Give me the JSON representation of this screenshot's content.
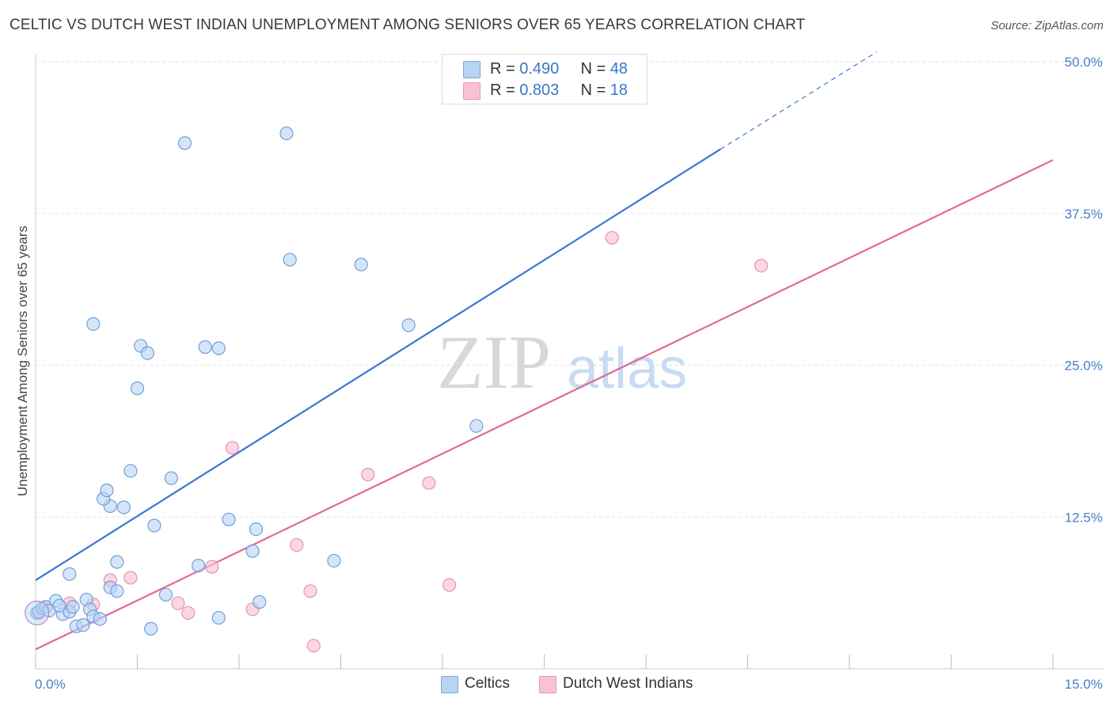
{
  "title": "CELTIC VS DUTCH WEST INDIAN UNEMPLOYMENT AMONG SENIORS OVER 65 YEARS CORRELATION CHART",
  "source": "Source: ZipAtlas.com",
  "watermark": {
    "zip": "ZIP",
    "atlas": "atlas"
  },
  "legend": {
    "rows": [
      {
        "r_label": "R = ",
        "r_value": "0.490",
        "n_label": "N = ",
        "n_value": "48"
      },
      {
        "r_label": "R = ",
        "r_value": "0.803",
        "n_label": "N = ",
        "n_value": "18"
      }
    ]
  },
  "chart_data": {
    "type": "scatter",
    "title": "CELTIC VS DUTCH WEST INDIAN UNEMPLOYMENT AMONG SENIORS OVER 65 YEARS CORRELATION CHART",
    "xlabel": "",
    "ylabel": "Unemployment Among Seniors over 65 years",
    "xlim": [
      0,
      15
    ],
    "ylim": [
      0,
      50
    ],
    "x_tick_labels": [
      "0.0%",
      "15.0%"
    ],
    "y_ticks": [
      12.5,
      25.0,
      37.5,
      50.0
    ],
    "y_tick_labels": [
      "12.5%",
      "25.0%",
      "37.5%",
      "50.0%"
    ],
    "colors": {
      "celtics": "#3a78d0",
      "celtics_fill": "#b9d3f3",
      "dutch": "#e06a96",
      "dutch_fill": "#f7c2d4",
      "grid": "#e2e2e2",
      "tick_text": "#4a7fc8"
    },
    "series": [
      {
        "name": "Celtics",
        "r": 0.49,
        "n": 48,
        "trend": {
          "x0": 0.0,
          "y0": 7.3,
          "x1": 10.1,
          "y1": 42.8,
          "dash_to_x": 12.4,
          "dash_to_y": 50.8
        },
        "points": [
          [
            0.02,
            4.6
          ],
          [
            0.05,
            4.7
          ],
          [
            0.1,
            5.0
          ],
          [
            0.15,
            5.1
          ],
          [
            0.2,
            4.8
          ],
          [
            0.3,
            5.6
          ],
          [
            0.4,
            4.5
          ],
          [
            0.5,
            4.7
          ],
          [
            0.6,
            3.5
          ],
          [
            0.7,
            3.6
          ],
          [
            0.75,
            5.7
          ],
          [
            0.8,
            4.9
          ],
          [
            0.85,
            4.3
          ],
          [
            0.95,
            4.1
          ],
          [
            0.5,
            7.8
          ],
          [
            1.1,
            6.7
          ],
          [
            1.2,
            6.4
          ],
          [
            1.2,
            8.8
          ],
          [
            1.3,
            13.3
          ],
          [
            1.4,
            16.3
          ],
          [
            1.5,
            23.1
          ],
          [
            1.55,
            26.6
          ],
          [
            1.65,
            26.0
          ],
          [
            1.7,
            3.3
          ],
          [
            1.75,
            11.8
          ],
          [
            2.0,
            15.7
          ],
          [
            1.92,
            6.1
          ],
          [
            2.2,
            43.3
          ],
          [
            2.4,
            8.5
          ],
          [
            2.5,
            26.5
          ],
          [
            2.7,
            26.4
          ],
          [
            2.7,
            4.2
          ],
          [
            2.85,
            12.3
          ],
          [
            3.2,
            9.7
          ],
          [
            3.25,
            11.5
          ],
          [
            3.3,
            5.5
          ],
          [
            3.7,
            44.1
          ],
          [
            3.75,
            33.7
          ],
          [
            4.4,
            8.9
          ],
          [
            4.8,
            33.3
          ],
          [
            5.5,
            28.3
          ],
          [
            6.5,
            20.0
          ],
          [
            0.85,
            28.4
          ],
          [
            1.1,
            13.4
          ],
          [
            1.0,
            14.0
          ],
          [
            1.05,
            14.7
          ],
          [
            0.55,
            5.1
          ],
          [
            0.35,
            5.2
          ]
        ]
      },
      {
        "name": "Dutch West Indians",
        "r": 0.803,
        "n": 18,
        "trend": {
          "x0": 0.0,
          "y0": 1.6,
          "x1": 15.0,
          "y1": 41.9
        },
        "points": [
          [
            0.05,
            4.6
          ],
          [
            0.5,
            5.4
          ],
          [
            0.85,
            5.3
          ],
          [
            1.1,
            7.3
          ],
          [
            1.4,
            7.5
          ],
          [
            2.1,
            5.4
          ],
          [
            2.25,
            4.6
          ],
          [
            2.6,
            8.4
          ],
          [
            2.9,
            18.2
          ],
          [
            3.2,
            4.9
          ],
          [
            3.85,
            10.2
          ],
          [
            4.05,
            6.4
          ],
          [
            4.1,
            1.9
          ],
          [
            4.9,
            16.0
          ],
          [
            5.8,
            15.3
          ],
          [
            6.1,
            6.9
          ],
          [
            8.5,
            35.5
          ],
          [
            10.7,
            33.2
          ]
        ]
      }
    ],
    "legend_position": "top-center",
    "grid": true
  },
  "bottom_legend": [
    {
      "label": "Celtics"
    },
    {
      "label": "Dutch West Indians"
    }
  ]
}
